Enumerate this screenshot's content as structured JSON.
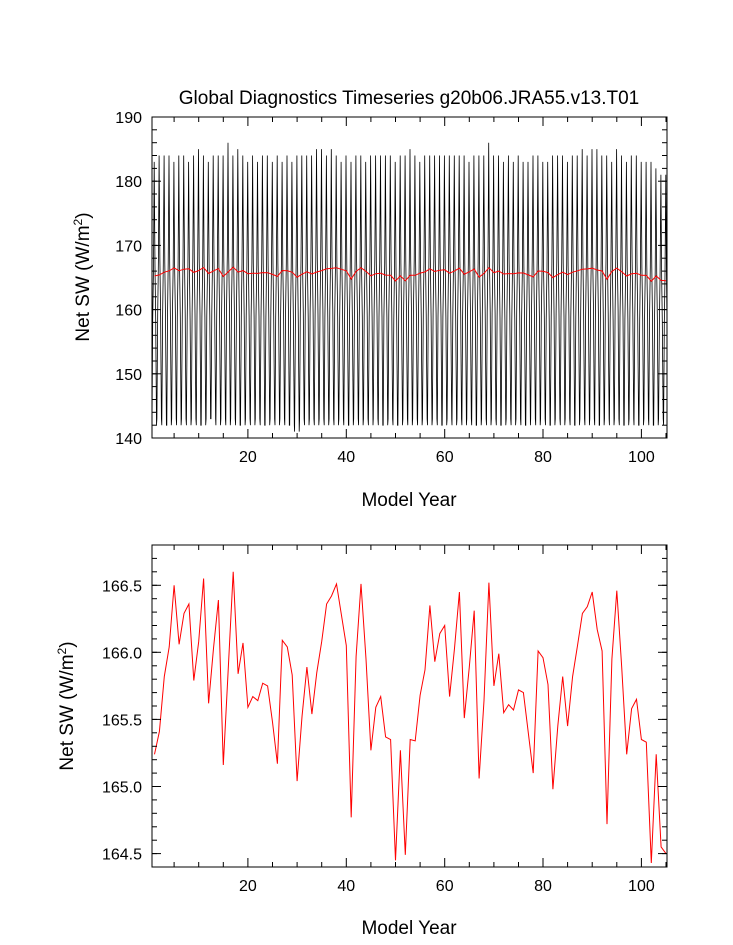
{
  "figure": {
    "title": "Global Diagnostics Timeseries g20b06.JRA55.v13.T01"
  },
  "colors": {
    "monthly": "#000000",
    "annual": "#ff0000",
    "axis": "#000000"
  },
  "chart_data": [
    {
      "type": "line",
      "title": "Global Diagnostics Timeseries g20b06.JRA55.v13.T01",
      "xlabel": "Model Year",
      "ylabel": "Net SW (W/m",
      "ylabel_sup": "2",
      "ylabel_close": ")",
      "xlim": [
        0.5,
        105.2
      ],
      "ylim": [
        140,
        190
      ],
      "xticks": [
        20,
        40,
        60,
        80,
        100
      ],
      "yticks": [
        140,
        150,
        160,
        170,
        180,
        190
      ],
      "grid": false,
      "series": [
        {
          "color": "#000000",
          "kind": "monthly-cycle",
          "peaks": [
            183,
            184,
            184,
            184,
            183,
            184,
            184,
            183,
            184,
            185,
            184,
            183,
            184,
            184,
            184,
            186,
            184,
            185,
            184,
            183,
            184,
            183,
            184,
            184,
            183,
            184,
            183,
            184,
            183,
            184,
            184,
            184,
            184,
            185,
            185,
            184,
            185,
            184,
            183,
            184,
            183,
            184,
            184,
            183,
            184,
            184,
            184,
            184,
            184,
            183,
            184,
            184,
            185,
            184,
            183,
            184,
            184,
            184,
            184,
            184,
            184,
            184,
            184,
            184,
            183,
            184,
            184,
            184,
            186,
            184,
            184,
            183,
            184,
            183,
            184,
            183,
            183,
            184,
            184,
            183,
            183,
            184,
            184,
            184,
            183,
            184,
            184,
            185,
            184,
            185,
            185,
            184,
            184,
            183,
            185,
            184,
            183,
            184,
            184,
            183,
            183,
            183,
            182,
            181,
            181
          ],
          "troughs": [
            142,
            143,
            142,
            142,
            143,
            142,
            143,
            142,
            143,
            142,
            142,
            143,
            143,
            142,
            143,
            142,
            143,
            142,
            142,
            143,
            142,
            143,
            142,
            142,
            143,
            142,
            143,
            142,
            142,
            141,
            143,
            142,
            143,
            142,
            143,
            142,
            143,
            142,
            143,
            142,
            142,
            143,
            142,
            143,
            142,
            143,
            142,
            142,
            143,
            142,
            142,
            143,
            142,
            143,
            142,
            143,
            142,
            143,
            142,
            142,
            143,
            142,
            143,
            142,
            143,
            142,
            142,
            143,
            142,
            143,
            142,
            142,
            143,
            142,
            143,
            142,
            142,
            143,
            142,
            143,
            142,
            142,
            143,
            142,
            143,
            142,
            142,
            143,
            142,
            143,
            142,
            142,
            143,
            142,
            143,
            142,
            142,
            143,
            142,
            142,
            143,
            142,
            142,
            143,
            142
          ]
        },
        {
          "color": "#ff0000",
          "kind": "annual-mean",
          "x": [
            1,
            2,
            3,
            4,
            5,
            6,
            7,
            8,
            9,
            10,
            11,
            12,
            13,
            14,
            15,
            16,
            17,
            18,
            19,
            20,
            21,
            22,
            23,
            24,
            25,
            26,
            27,
            28,
            29,
            30,
            31,
            32,
            33,
            34,
            35,
            36,
            37,
            38,
            39,
            40,
            41,
            42,
            43,
            44,
            45,
            46,
            47,
            48,
            49,
            50,
            51,
            52,
            53,
            54,
            55,
            56,
            57,
            58,
            59,
            60,
            61,
            62,
            63,
            64,
            65,
            66,
            67,
            68,
            69,
            70,
            71,
            72,
            73,
            74,
            75,
            76,
            77,
            78,
            79,
            80,
            81,
            82,
            83,
            84,
            85,
            86,
            87,
            88,
            89,
            90,
            91,
            92,
            93,
            94,
            95,
            96,
            97,
            98,
            99,
            100,
            101,
            102,
            103,
            104,
            105
          ],
          "y": [
            165.24,
            165.41,
            165.82,
            166.04,
            166.5,
            166.06,
            166.29,
            166.36,
            165.79,
            166.08,
            166.55,
            165.62,
            166.03,
            166.39,
            165.16,
            165.87,
            166.6,
            165.84,
            166.07,
            165.59,
            165.67,
            165.64,
            165.77,
            165.75,
            165.48,
            165.17,
            166.09,
            166.04,
            165.83,
            165.04,
            165.52,
            165.89,
            165.54,
            165.85,
            166.08,
            166.36,
            166.42,
            166.51,
            166.28,
            166.05,
            164.77,
            165.97,
            166.51,
            165.95,
            165.27,
            165.59,
            165.67,
            165.37,
            165.35,
            164.45,
            165.27,
            164.49,
            165.35,
            165.34,
            165.68,
            165.87,
            166.35,
            165.93,
            166.14,
            166.2,
            165.67,
            166.03,
            166.45,
            165.51,
            165.89,
            166.31,
            165.06,
            165.64,
            166.52,
            165.75,
            165.99,
            165.55,
            165.61,
            165.57,
            165.72,
            165.7,
            165.4,
            165.1,
            166.01,
            165.96,
            165.76,
            164.98,
            165.45,
            165.82,
            165.45,
            165.82,
            166.05,
            166.29,
            166.34,
            166.45,
            166.17,
            166.01,
            164.72,
            165.95,
            166.46,
            165.89,
            165.24,
            165.58,
            165.65,
            165.35,
            165.33,
            164.43,
            165.24,
            164.55,
            164.5
          ]
        }
      ]
    },
    {
      "type": "line",
      "title": "",
      "xlabel": "Model Year",
      "ylabel": "Net SW (W/m",
      "ylabel_sup": "2",
      "ylabel_close": ")",
      "xlim": [
        0.5,
        105.2
      ],
      "ylim": [
        164.4,
        166.8
      ],
      "xticks": [
        20,
        40,
        60,
        80,
        100
      ],
      "yticks": [
        164.5,
        165.0,
        165.5,
        166.0,
        166.5
      ],
      "ytick_labels": [
        "164.5",
        "165.0",
        "165.5",
        "166.0",
        "166.5"
      ],
      "grid": false,
      "series": [
        {
          "color": "#ff0000",
          "kind": "annual-mean",
          "x": [
            1,
            2,
            3,
            4,
            5,
            6,
            7,
            8,
            9,
            10,
            11,
            12,
            13,
            14,
            15,
            16,
            17,
            18,
            19,
            20,
            21,
            22,
            23,
            24,
            25,
            26,
            27,
            28,
            29,
            30,
            31,
            32,
            33,
            34,
            35,
            36,
            37,
            38,
            39,
            40,
            41,
            42,
            43,
            44,
            45,
            46,
            47,
            48,
            49,
            50,
            51,
            52,
            53,
            54,
            55,
            56,
            57,
            58,
            59,
            60,
            61,
            62,
            63,
            64,
            65,
            66,
            67,
            68,
            69,
            70,
            71,
            72,
            73,
            74,
            75,
            76,
            77,
            78,
            79,
            80,
            81,
            82,
            83,
            84,
            85,
            86,
            87,
            88,
            89,
            90,
            91,
            92,
            93,
            94,
            95,
            96,
            97,
            98,
            99,
            100,
            101,
            102,
            103,
            104,
            105
          ],
          "y": [
            165.24,
            165.41,
            165.82,
            166.04,
            166.5,
            166.06,
            166.29,
            166.36,
            165.79,
            166.08,
            166.55,
            165.62,
            166.03,
            166.39,
            165.16,
            165.87,
            166.6,
            165.84,
            166.07,
            165.59,
            165.67,
            165.64,
            165.77,
            165.75,
            165.48,
            165.17,
            166.09,
            166.04,
            165.83,
            165.04,
            165.52,
            165.89,
            165.54,
            165.85,
            166.08,
            166.36,
            166.42,
            166.51,
            166.28,
            166.05,
            164.77,
            165.97,
            166.51,
            165.95,
            165.27,
            165.59,
            165.67,
            165.37,
            165.35,
            164.45,
            165.27,
            164.49,
            165.35,
            165.34,
            165.68,
            165.87,
            166.35,
            165.93,
            166.14,
            166.2,
            165.67,
            166.03,
            166.45,
            165.51,
            165.89,
            166.31,
            165.06,
            165.64,
            166.52,
            165.75,
            165.99,
            165.55,
            165.61,
            165.57,
            165.72,
            165.7,
            165.4,
            165.1,
            166.01,
            165.96,
            165.76,
            164.98,
            165.45,
            165.82,
            165.45,
            165.82,
            166.05,
            166.29,
            166.34,
            166.45,
            166.17,
            166.01,
            164.72,
            165.95,
            166.46,
            165.89,
            165.24,
            165.58,
            165.65,
            165.35,
            165.33,
            164.43,
            165.24,
            164.55,
            164.5
          ]
        }
      ]
    }
  ]
}
